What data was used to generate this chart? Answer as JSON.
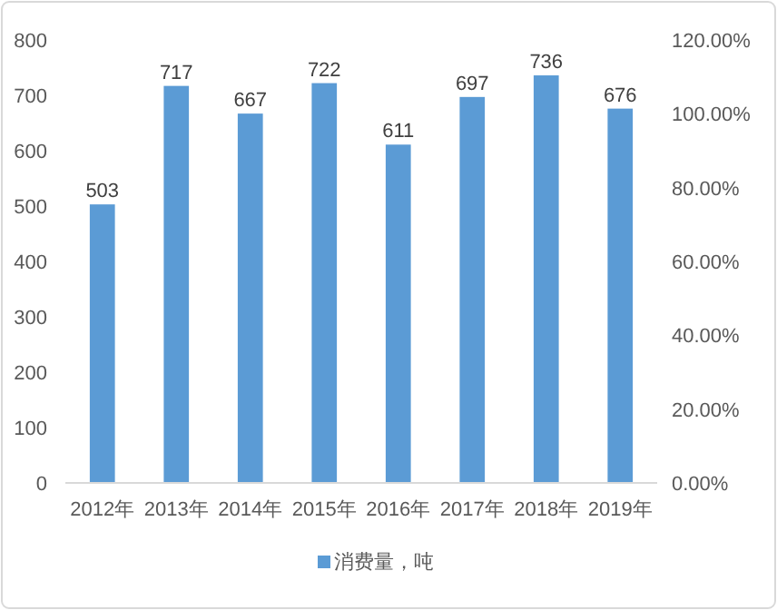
{
  "chart_data": {
    "type": "bar",
    "categories": [
      "2012年",
      "2013年",
      "2014年",
      "2015年",
      "2016年",
      "2017年",
      "2018年",
      "2019年"
    ],
    "series": [
      {
        "name": "消费量，吨",
        "color": "#5b9bd5",
        "values": [
          503,
          717,
          667,
          722,
          611,
          697,
          736,
          676
        ]
      }
    ],
    "ylim": [
      0,
      800
    ],
    "yticks": [
      0,
      100,
      200,
      300,
      400,
      500,
      600,
      700,
      800
    ],
    "y2lim": [
      0,
      120
    ],
    "y2ticks": [
      {
        "value": 0,
        "label": "0.00%"
      },
      {
        "value": 20,
        "label": "20.00%"
      },
      {
        "value": 40,
        "label": "40.00%"
      },
      {
        "value": 60,
        "label": "60.00%"
      },
      {
        "value": 80,
        "label": "80.00%"
      },
      {
        "value": 100,
        "label": "100.00%"
      },
      {
        "value": 120,
        "label": "120.00%"
      }
    ],
    "data_labels": true,
    "grid": false,
    "legend": "bottom"
  }
}
